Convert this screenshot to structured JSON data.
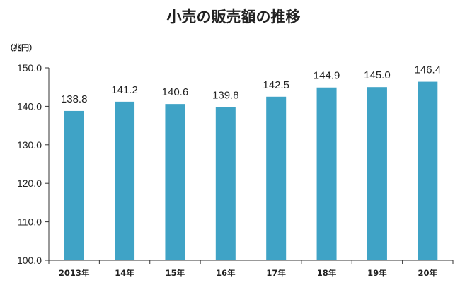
{
  "chart_data": {
    "type": "bar",
    "title": "小売の販売額の推移",
    "unit_label": "（兆円）",
    "categories": [
      "2013年",
      "14年",
      "15年",
      "16年",
      "17年",
      "18年",
      "19年",
      "20年"
    ],
    "values": [
      138.8,
      141.2,
      140.6,
      139.8,
      142.5,
      144.9,
      145.0,
      146.4
    ],
    "data_labels": [
      "138.8",
      "141.2",
      "140.6",
      "139.8",
      "142.5",
      "144.9",
      "145.0",
      "146.4"
    ],
    "yticks": [
      "100.0",
      "110.0",
      "120.0",
      "130.0",
      "140.0",
      "150.0"
    ],
    "ylim": [
      100,
      150
    ],
    "bar_color": "#3fa3c6",
    "grid": false,
    "legend": "none"
  }
}
